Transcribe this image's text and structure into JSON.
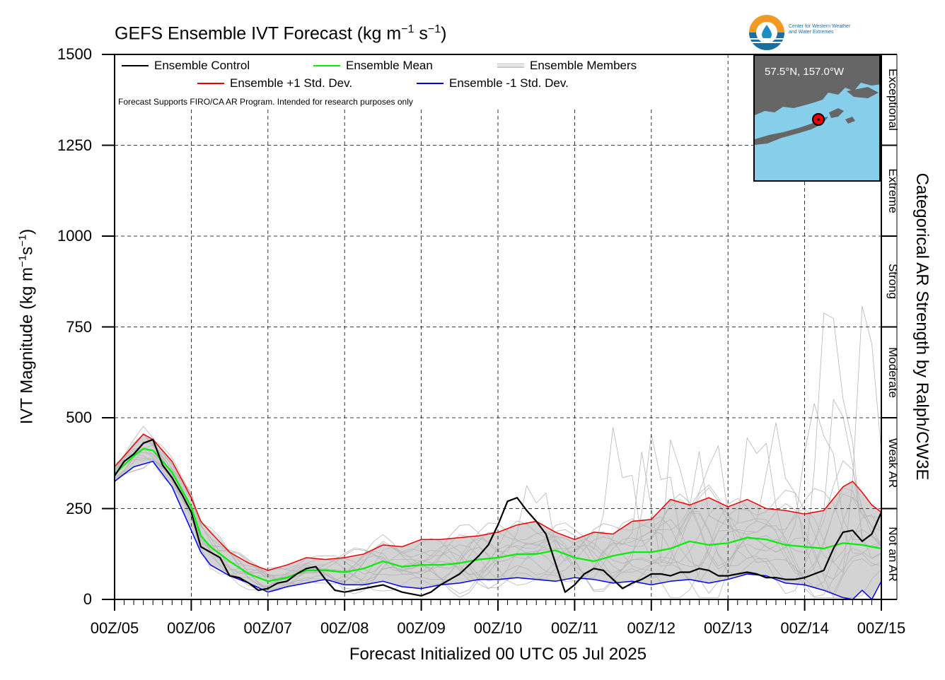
{
  "title": "GEFS Ensemble IVT Forecast (kg m",
  "title_exp1": "−1",
  "title_mid": " s",
  "title_exp2": "−1",
  "title_end": ")",
  "ylabel_pre": "IVT Magnitude (kg m",
  "ylabel_exp1": "−1",
  "ylabel_mid": "s",
  "ylabel_exp2": "−1",
  "ylabel_end": ")",
  "xlabel": "Forecast Initialized 00 UTC 05 Jul 2025",
  "right_label": "Categorical AR Strength by Ralph/CW3E",
  "legend": {
    "control": "Ensemble Control",
    "mean": "Ensemble Mean",
    "members": "Ensemble Members",
    "plus": "Ensemble +1 Std. Dev.",
    "minus": "Ensemble -1 Std. Dev."
  },
  "note": "Forecast Supports FIRO/CA AR Program. Intended for research purposes only",
  "inset": {
    "location": "57.5°N, 157.0°W"
  },
  "logo": {
    "line1": "Center for Western Weather",
    "line2": "and Water Extremes"
  },
  "categories": [
    "Exceptional",
    "Extreme",
    "Strong",
    "Moderate",
    "Weak AR",
    "Not an AR"
  ],
  "colors": {
    "control": "#000000",
    "mean": "#00ee00",
    "plus": "#ee0000",
    "minus": "#0000ee",
    "members": "#b5b5b5",
    "shade": "#d3d3d3"
  },
  "chart_data": {
    "type": "line",
    "x_ticks": [
      "00Z/05",
      "00Z/06",
      "00Z/07",
      "00Z/08",
      "00Z/09",
      "00Z/10",
      "00Z/11",
      "00Z/12",
      "00Z/13",
      "00Z/14",
      "00Z/15"
    ],
    "y_ticks": [
      0,
      250,
      500,
      750,
      1000,
      1250,
      1500
    ],
    "ylim": [
      0,
      1500
    ],
    "xlim_days": [
      0,
      10
    ],
    "grid": true,
    "legend_position": "top-left",
    "category_thresholds": [
      0,
      250,
      500,
      750,
      1000,
      1250,
      1500
    ],
    "series": [
      {
        "name": "Ensemble +1 Std. Dev.",
        "key": "plus",
        "x": [
          0,
          0.25,
          0.375,
          0.5,
          0.625,
          0.75,
          1,
          1.125,
          1.25,
          1.5,
          1.75,
          2,
          2.25,
          2.5,
          2.75,
          3,
          3.25,
          3.5,
          3.75,
          4,
          4.25,
          4.5,
          4.75,
          5,
          5.25,
          5.5,
          5.75,
          6,
          6.25,
          6.5,
          6.75,
          7,
          7.25,
          7.5,
          7.75,
          8,
          8.25,
          8.5,
          8.75,
          9,
          9.25,
          9.5,
          9.625,
          9.75,
          9.875,
          10
        ],
        "y": [
          365,
          425,
          455,
          440,
          410,
          380,
          280,
          215,
          185,
          130,
          100,
          80,
          95,
          115,
          110,
          115,
          125,
          150,
          145,
          165,
          165,
          170,
          175,
          185,
          205,
          215,
          185,
          165,
          185,
          180,
          215,
          220,
          275,
          260,
          280,
          255,
          275,
          250,
          245,
          235,
          245,
          310,
          325,
          295,
          260,
          240
        ]
      },
      {
        "name": "Ensemble Mean",
        "key": "mean",
        "x": [
          0,
          0.25,
          0.375,
          0.5,
          0.75,
          1,
          1.125,
          1.25,
          1.5,
          1.75,
          2,
          2.25,
          2.5,
          2.75,
          3,
          3.25,
          3.5,
          3.75,
          4,
          4.25,
          4.5,
          4.75,
          5,
          5.25,
          5.5,
          5.75,
          6,
          6.25,
          6.5,
          6.75,
          7,
          7.25,
          7.5,
          7.75,
          8,
          8.25,
          8.5,
          8.75,
          9,
          9.25,
          9.5,
          9.75,
          10
        ],
        "y": [
          345,
          395,
          415,
          410,
          350,
          255,
          175,
          145,
          105,
          70,
          50,
          60,
          80,
          80,
          75,
          85,
          105,
          90,
          95,
          95,
          100,
          110,
          115,
          125,
          125,
          135,
          115,
          105,
          120,
          130,
          130,
          140,
          160,
          150,
          155,
          170,
          165,
          150,
          145,
          140,
          155,
          150,
          140
        ]
      },
      {
        "name": "Ensemble -1 Std. Dev.",
        "key": "minus",
        "x": [
          0,
          0.25,
          0.5,
          0.75,
          1,
          1.125,
          1.25,
          1.5,
          1.75,
          2,
          2.25,
          2.5,
          2.75,
          3,
          3.25,
          3.5,
          3.75,
          4,
          4.25,
          4.5,
          4.75,
          5,
          5.25,
          5.5,
          5.75,
          6,
          6.25,
          6.5,
          6.75,
          7,
          7.25,
          7.5,
          7.75,
          8,
          8.25,
          8.5,
          8.75,
          9,
          9.25,
          9.5,
          9.625,
          9.75,
          9.875,
          10
        ],
        "y": [
          325,
          365,
          380,
          310,
          190,
          130,
          95,
          65,
          45,
          20,
          35,
          45,
          55,
          40,
          40,
          50,
          35,
          30,
          40,
          45,
          55,
          55,
          60,
          55,
          50,
          60,
          55,
          45,
          50,
          40,
          50,
          55,
          45,
          55,
          70,
          65,
          45,
          40,
          25,
          5,
          0,
          25,
          0,
          50
        ]
      },
      {
        "name": "Ensemble Control",
        "key": "control",
        "x": [
          0,
          0.125,
          0.25,
          0.375,
          0.5,
          0.625,
          0.75,
          0.875,
          1,
          1.125,
          1.25,
          1.375,
          1.5,
          1.625,
          1.75,
          1.875,
          2,
          2.125,
          2.25,
          2.375,
          2.5,
          2.625,
          2.75,
          2.875,
          3,
          3.125,
          3.25,
          3.375,
          3.5,
          3.625,
          3.75,
          3.875,
          4,
          4.125,
          4.25,
          4.375,
          4.5,
          4.625,
          4.75,
          4.875,
          5,
          5.125,
          5.25,
          5.375,
          5.5,
          5.625,
          5.75,
          5.875,
          6,
          6.125,
          6.25,
          6.375,
          6.5,
          6.625,
          6.75,
          6.875,
          7,
          7.125,
          7.25,
          7.375,
          7.5,
          7.625,
          7.75,
          7.875,
          8,
          8.125,
          8.25,
          8.375,
          8.5,
          8.625,
          8.75,
          8.875,
          9,
          9.125,
          9.25,
          9.375,
          9.5,
          9.625,
          9.75,
          9.875,
          10
        ],
        "y": [
          340,
          380,
          400,
          430,
          440,
          370,
          335,
          290,
          240,
          145,
          130,
          115,
          65,
          60,
          45,
          25,
          30,
          45,
          50,
          70,
          85,
          90,
          55,
          25,
          20,
          25,
          30,
          35,
          40,
          30,
          20,
          15,
          10,
          20,
          40,
          55,
          70,
          95,
          120,
          150,
          205,
          270,
          280,
          245,
          215,
          180,
          100,
          20,
          40,
          70,
          85,
          80,
          55,
          30,
          45,
          55,
          70,
          70,
          65,
          75,
          75,
          85,
          80,
          65,
          65,
          70,
          75,
          70,
          60,
          60,
          55,
          55,
          60,
          70,
          80,
          140,
          185,
          190,
          160,
          180,
          240
        ]
      }
    ]
  }
}
